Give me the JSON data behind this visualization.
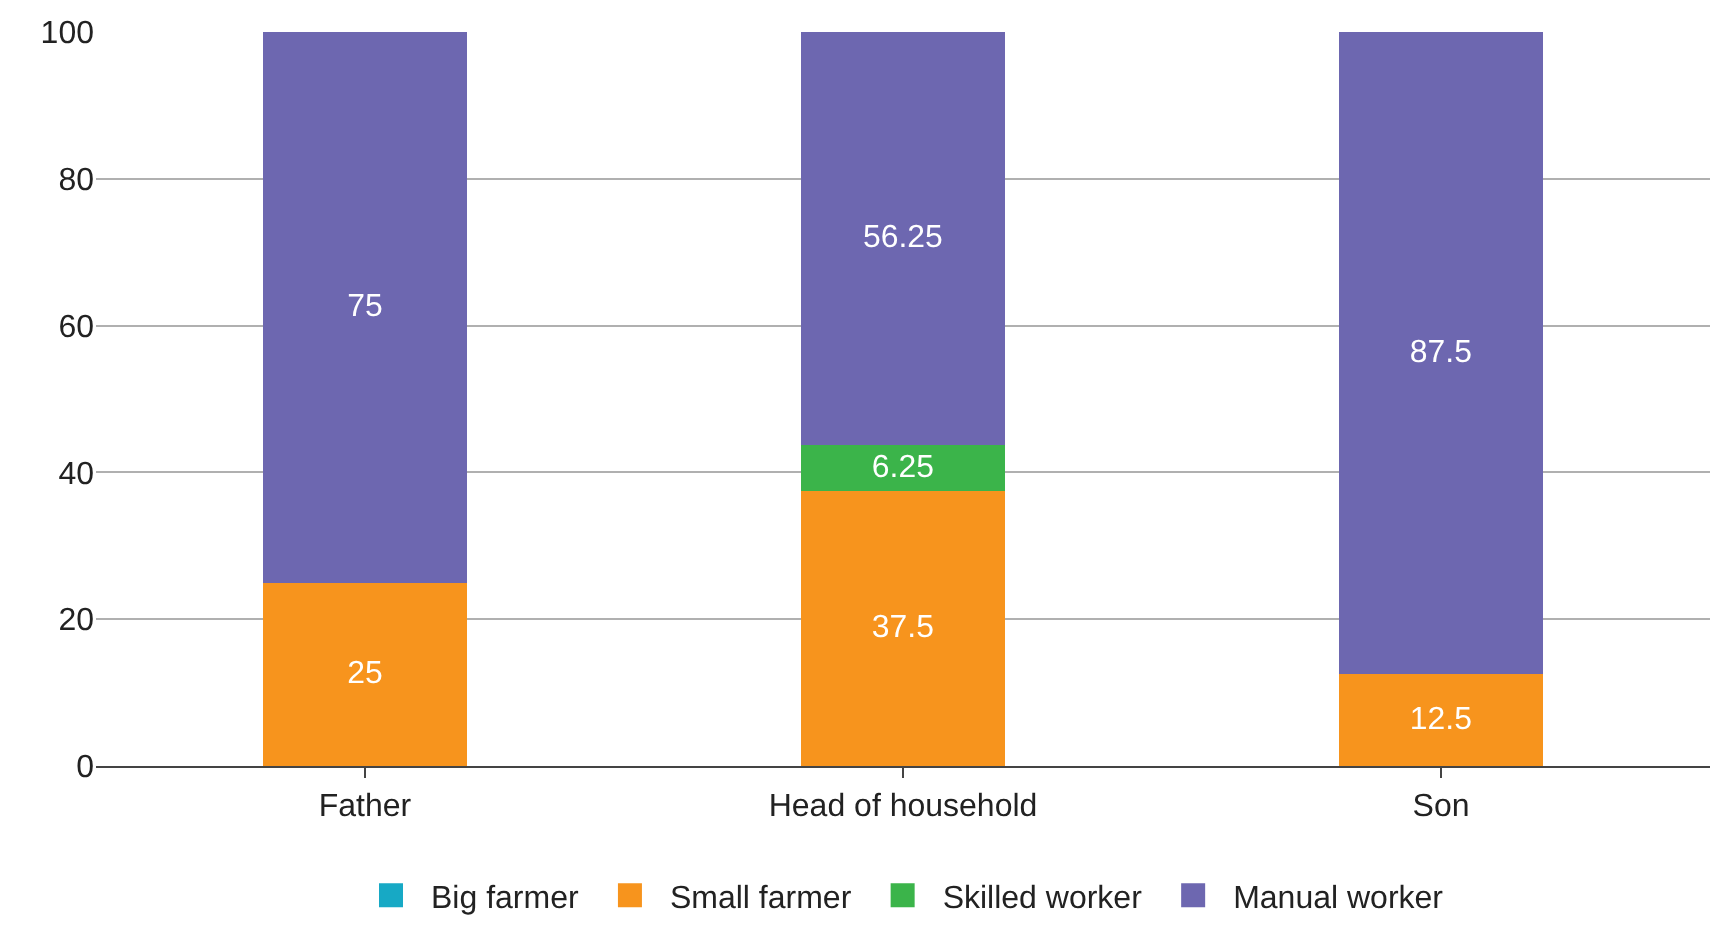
{
  "chart_data": {
    "type": "bar",
    "stacked": true,
    "categories": [
      "Father",
      "Head of household",
      "Son"
    ],
    "series": [
      {
        "name": "Big farmer",
        "color": "#17a9c5",
        "values": [
          0,
          0,
          0
        ],
        "value_labels": [
          null,
          null,
          null
        ]
      },
      {
        "name": "Small farmer",
        "color": "#f7941d",
        "values": [
          25,
          37.5,
          12.5
        ],
        "value_labels": [
          "25",
          "37.5",
          "12.5"
        ]
      },
      {
        "name": "Skilled worker",
        "color": "#3bb44a",
        "values": [
          0,
          6.25,
          0
        ],
        "value_labels": [
          null,
          "6.25",
          null
        ]
      },
      {
        "name": "Manual worker",
        "color": "#6d67b0",
        "values": [
          75,
          56.25,
          87.5
        ],
        "value_labels": [
          "75",
          "56.25",
          "87.5"
        ]
      }
    ],
    "ylim": [
      0,
      100
    ],
    "yticks": [
      0,
      20,
      40,
      60,
      80,
      100
    ],
    "grid": "y",
    "legend": "bottom"
  }
}
